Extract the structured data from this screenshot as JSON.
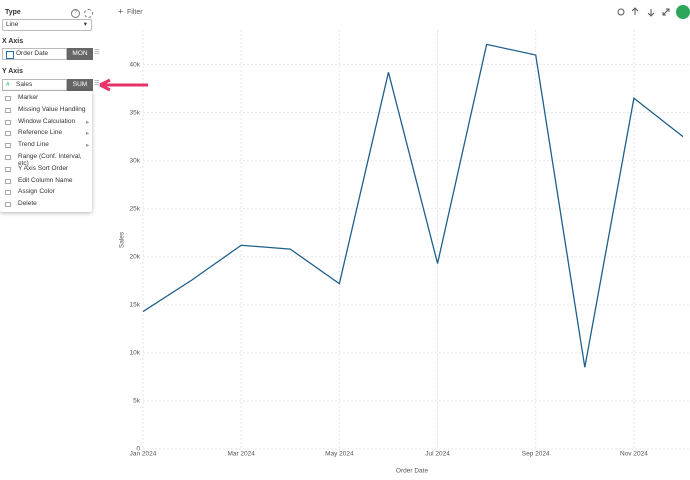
{
  "toolbar": {
    "filter": "Filter"
  },
  "sidebar": {
    "type_label": "Type",
    "type_value": "Line",
    "x_axis_label": "X Axis",
    "x_field": "Order Date",
    "x_agg": "MON",
    "y_axis_label": "Y Axis",
    "y_field": "Sales",
    "y_agg": "SUM",
    "menu": [
      "Marker",
      "Missing Value Handling",
      "Window Calculation",
      "Reference Line",
      "Trend Line",
      "Range (Conf. Interval, etc)",
      "Y Axis Sort Order",
      "Edit Column Name",
      "Assign Color",
      "Delete"
    ]
  },
  "chart_data": {
    "type": "line",
    "x_label": "Order Date",
    "y_label": "Sales",
    "categories": [
      "Jan 2024",
      null,
      "Mar 2024",
      null,
      "May 2024",
      null,
      "Jul 2024",
      null,
      "Sep 2024",
      null,
      "Nov 2024",
      null
    ],
    "series": [
      {
        "name": "Sales",
        "color": "#1f5f8b",
        "values": [
          14300,
          17600,
          21200,
          20800,
          17200,
          39200,
          19300,
          42100,
          41000,
          8500,
          36500,
          32500
        ]
      }
    ],
    "ylim": [
      0,
      43600
    ],
    "yticks": [
      0,
      {
        "value": 5000,
        "label": "5k"
      },
      {
        "value": 10000,
        "label": "10k"
      },
      {
        "value": 15000,
        "label": "15k"
      },
      {
        "value": 20000,
        "label": "20k"
      },
      {
        "value": 25000,
        "label": "25k"
      },
      {
        "value": 30000,
        "label": "30k"
      },
      {
        "value": 35000,
        "label": "35k"
      },
      {
        "value": 40000,
        "label": "40k"
      }
    ],
    "grid": true
  }
}
